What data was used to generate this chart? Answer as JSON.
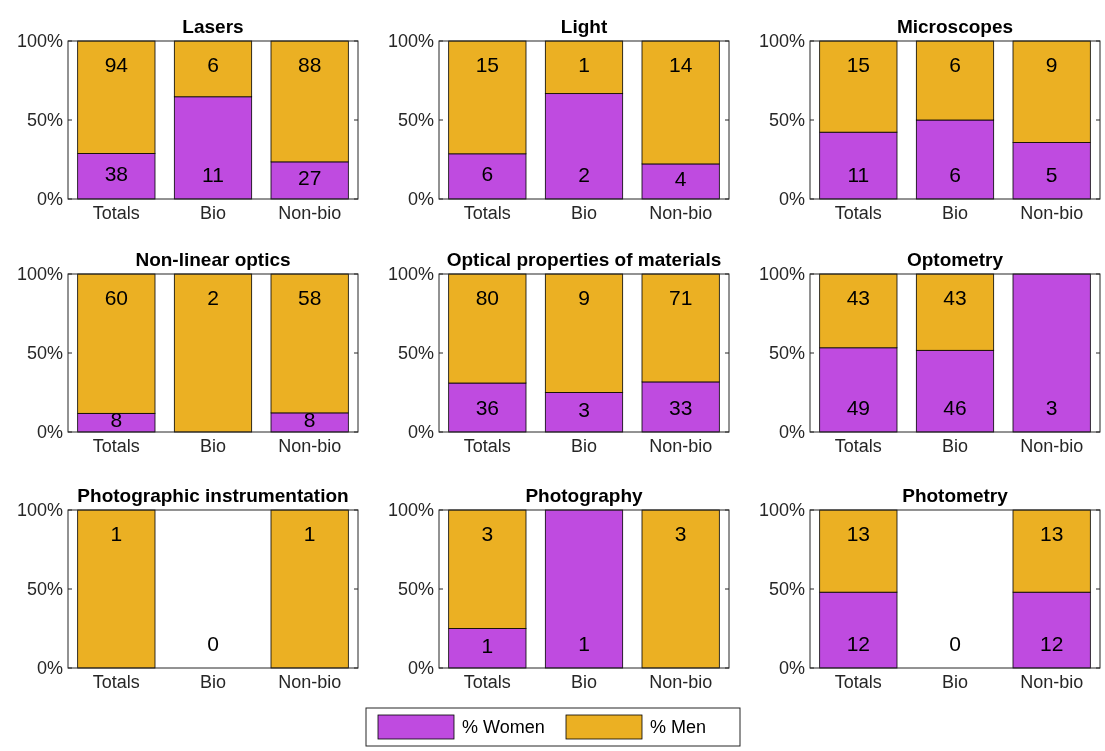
{
  "chart_data": [
    {
      "type": "bar",
      "title": "Lasers",
      "categories": [
        "Totals",
        "Bio",
        "Non-bio"
      ],
      "stacked": true,
      "ylim": [
        0,
        100
      ],
      "yticks": [
        {
          "value": 0,
          "label": "0%"
        },
        {
          "value": 50,
          "label": "50%"
        },
        {
          "value": 100,
          "label": "100%"
        }
      ],
      "series": [
        {
          "color": "#bf4be0",
          "values": [
            28.8,
            64.7,
            23.5
          ]
        },
        {
          "color": "#ebb023",
          "values": [
            71.2,
            35.3,
            76.5
          ]
        }
      ],
      "annotations": [
        {
          "text": "38",
          "x": "Totals",
          "y": 0
        },
        {
          "text": "11",
          "x": "Bio",
          "y": 0
        },
        {
          "text": "27",
          "x": "Non-bio",
          "y": 0
        },
        {
          "text": "94",
          "x": "Totals",
          "y": 100
        },
        {
          "text": "6",
          "x": "Bio",
          "y": 100
        },
        {
          "text": "88",
          "x": "Non-bio",
          "y": 100
        }
      ]
    },
    {
      "type": "bar",
      "title": "Light",
      "categories": [
        "Totals",
        "Bio",
        "Non-bio"
      ],
      "stacked": true,
      "ylim": [
        0,
        100
      ],
      "yticks": [
        {
          "value": 0,
          "label": "0%"
        },
        {
          "value": 50,
          "label": "50%"
        },
        {
          "value": 100,
          "label": "100%"
        }
      ],
      "series": [
        {
          "color": "#bf4be0",
          "values": [
            28.6,
            66.7,
            22.2
          ]
        },
        {
          "color": "#ebb023",
          "values": [
            71.4,
            33.3,
            77.8
          ]
        }
      ],
      "annotations": [
        {
          "text": "6",
          "x": "Totals",
          "y": 0
        },
        {
          "text": "2",
          "x": "Bio",
          "y": 0
        },
        {
          "text": "4",
          "x": "Non-bio",
          "y": 0
        },
        {
          "text": "15",
          "x": "Totals",
          "y": 100
        },
        {
          "text": "1",
          "x": "Bio",
          "y": 100
        },
        {
          "text": "14",
          "x": "Non-bio",
          "y": 100
        }
      ]
    },
    {
      "type": "bar",
      "title": "Microscopes",
      "categories": [
        "Totals",
        "Bio",
        "Non-bio"
      ],
      "stacked": true,
      "ylim": [
        0,
        100
      ],
      "yticks": [
        {
          "value": 0,
          "label": "0%"
        },
        {
          "value": 50,
          "label": "50%"
        },
        {
          "value": 100,
          "label": "100%"
        }
      ],
      "series": [
        {
          "color": "#bf4be0",
          "values": [
            42.3,
            50,
            35.7
          ]
        },
        {
          "color": "#ebb023",
          "values": [
            57.7,
            50,
            64.3
          ]
        }
      ],
      "annotations": [
        {
          "text": "11",
          "x": "Totals",
          "y": 0
        },
        {
          "text": "6",
          "x": "Bio",
          "y": 0
        },
        {
          "text": "5",
          "x": "Non-bio",
          "y": 0
        },
        {
          "text": "15",
          "x": "Totals",
          "y": 100
        },
        {
          "text": "6",
          "x": "Bio",
          "y": 100
        },
        {
          "text": "9",
          "x": "Non-bio",
          "y": 100
        }
      ]
    },
    {
      "type": "bar",
      "title": "Non-linear optics",
      "categories": [
        "Totals",
        "Bio",
        "Non-bio"
      ],
      "stacked": true,
      "ylim": [
        0,
        100
      ],
      "yticks": [
        {
          "value": 0,
          "label": "0%"
        },
        {
          "value": 50,
          "label": "50%"
        },
        {
          "value": 100,
          "label": "100%"
        }
      ],
      "series": [
        {
          "color": "#bf4be0",
          "values": [
            11.8,
            0,
            12.1
          ]
        },
        {
          "color": "#ebb023",
          "values": [
            88.2,
            100,
            87.9
          ]
        }
      ],
      "annotations": [
        {
          "text": "8",
          "x": "Totals",
          "y": 0
        },
        {
          "text": "8",
          "x": "Non-bio",
          "y": 0
        },
        {
          "text": "60",
          "x": "Totals",
          "y": 100
        },
        {
          "text": "2",
          "x": "Bio",
          "y": 100
        },
        {
          "text": "58",
          "x": "Non-bio",
          "y": 100
        }
      ]
    },
    {
      "type": "bar",
      "title": "Optical properties of materials",
      "categories": [
        "Totals",
        "Bio",
        "Non-bio"
      ],
      "stacked": true,
      "ylim": [
        0,
        100
      ],
      "yticks": [
        {
          "value": 0,
          "label": "0%"
        },
        {
          "value": 50,
          "label": "50%"
        },
        {
          "value": 100,
          "label": "100%"
        }
      ],
      "series": [
        {
          "color": "#bf4be0",
          "values": [
            31.0,
            25,
            31.7
          ]
        },
        {
          "color": "#ebb023",
          "values": [
            69.0,
            75,
            68.3
          ]
        }
      ],
      "annotations": [
        {
          "text": "36",
          "x": "Totals",
          "y": 0
        },
        {
          "text": "3",
          "x": "Bio",
          "y": 0
        },
        {
          "text": "33",
          "x": "Non-bio",
          "y": 0
        },
        {
          "text": "80",
          "x": "Totals",
          "y": 100
        },
        {
          "text": "9",
          "x": "Bio",
          "y": 100
        },
        {
          "text": "71",
          "x": "Non-bio",
          "y": 100
        }
      ]
    },
    {
      "type": "bar",
      "title": "Optometry",
      "categories": [
        "Totals",
        "Bio",
        "Non-bio"
      ],
      "stacked": true,
      "ylim": [
        0,
        100
      ],
      "yticks": [
        {
          "value": 0,
          "label": "0%"
        },
        {
          "value": 50,
          "label": "50%"
        },
        {
          "value": 100,
          "label": "100%"
        }
      ],
      "series": [
        {
          "color": "#bf4be0",
          "values": [
            53.3,
            51.7,
            100
          ]
        },
        {
          "color": "#ebb023",
          "values": [
            46.7,
            48.3,
            0
          ]
        }
      ],
      "annotations": [
        {
          "text": "49",
          "x": "Totals",
          "y": 0
        },
        {
          "text": "46",
          "x": "Bio",
          "y": 0
        },
        {
          "text": "3",
          "x": "Non-bio",
          "y": 0
        },
        {
          "text": "43",
          "x": "Totals",
          "y": 100
        },
        {
          "text": "43",
          "x": "Bio",
          "y": 100
        }
      ]
    },
    {
      "type": "bar",
      "title": "Photographic instrumentation",
      "categories": [
        "Totals",
        "Bio",
        "Non-bio"
      ],
      "stacked": true,
      "ylim": [
        0,
        100
      ],
      "yticks": [
        {
          "value": 0,
          "label": "0%"
        },
        {
          "value": 50,
          "label": "50%"
        },
        {
          "value": 100,
          "label": "100%"
        }
      ],
      "series": [
        {
          "color": "#bf4be0",
          "values": [
            0,
            0,
            0
          ]
        },
        {
          "color": "#ebb023",
          "values": [
            100,
            0,
            100
          ]
        }
      ],
      "annotations": [
        {
          "text": "0",
          "x": "Bio",
          "y": 0
        },
        {
          "text": "1",
          "x": "Totals",
          "y": 100
        },
        {
          "text": "1",
          "x": "Non-bio",
          "y": 100
        }
      ]
    },
    {
      "type": "bar",
      "title": "Photography",
      "categories": [
        "Totals",
        "Bio",
        "Non-bio"
      ],
      "stacked": true,
      "ylim": [
        0,
        100
      ],
      "yticks": [
        {
          "value": 0,
          "label": "0%"
        },
        {
          "value": 50,
          "label": "50%"
        },
        {
          "value": 100,
          "label": "100%"
        }
      ],
      "series": [
        {
          "color": "#bf4be0",
          "values": [
            25,
            100,
            0
          ]
        },
        {
          "color": "#ebb023",
          "values": [
            75,
            0,
            100
          ]
        }
      ],
      "annotations": [
        {
          "text": "1",
          "x": "Totals",
          "y": 0
        },
        {
          "text": "1",
          "x": "Bio",
          "y": 0
        },
        {
          "text": "3",
          "x": "Totals",
          "y": 100
        },
        {
          "text": "3",
          "x": "Non-bio",
          "y": 100
        }
      ]
    },
    {
      "type": "bar",
      "title": "Photometry",
      "categories": [
        "Totals",
        "Bio",
        "Non-bio"
      ],
      "stacked": true,
      "ylim": [
        0,
        100
      ],
      "yticks": [
        {
          "value": 0,
          "label": "0%"
        },
        {
          "value": 50,
          "label": "50%"
        },
        {
          "value": 100,
          "label": "100%"
        }
      ],
      "legend": "bottom",
      "series": [
        {
          "name": "% Women",
          "color": "#bf4be0",
          "values": [
            48,
            0,
            48
          ]
        },
        {
          "name": "% Men",
          "color": "#ebb023",
          "values": [
            52,
            0,
            52
          ]
        }
      ],
      "annotations": [
        {
          "text": "12",
          "x": "Totals",
          "y": 0
        },
        {
          "text": "0",
          "x": "Bio",
          "y": 0
        },
        {
          "text": "12",
          "x": "Non-bio",
          "y": 0
        },
        {
          "text": "13",
          "x": "Totals",
          "y": 100
        },
        {
          "text": "13",
          "x": "Non-bio",
          "y": 100
        }
      ]
    }
  ]
}
